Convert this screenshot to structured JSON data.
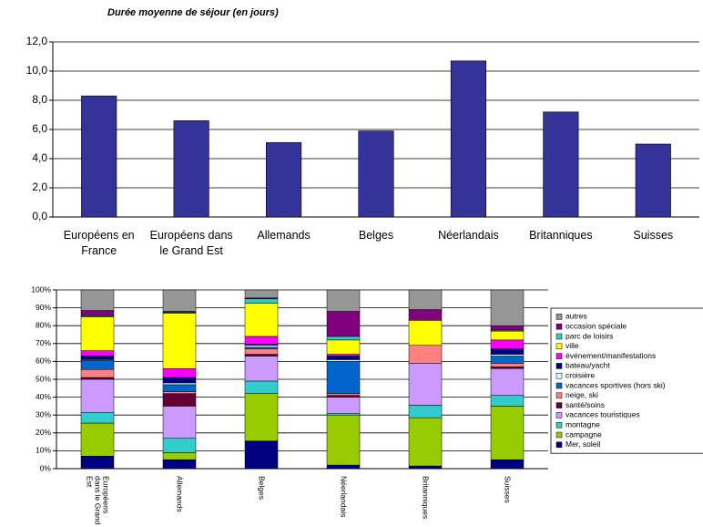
{
  "chart_data": [
    {
      "type": "bar",
      "title": "Durée moyenne de séjour (en jours)",
      "categories": [
        "Européens en France",
        "Européens dans le Grand Est",
        "Allemands",
        "Belges",
        "Néerlandais",
        "Britanniques",
        "Suisses"
      ],
      "values": [
        8.3,
        6.6,
        5.1,
        5.9,
        10.7,
        7.2,
        5.0
      ],
      "color": "#333399",
      "ylim": [
        0,
        12
      ],
      "yticks": [
        {
          "value": 0,
          "label": "0,0"
        },
        {
          "value": 2,
          "label": "2,0"
        },
        {
          "value": 4,
          "label": "4,0"
        },
        {
          "value": 6,
          "label": "6,0"
        },
        {
          "value": 8,
          "label": "8,0"
        },
        {
          "value": 10,
          "label": "10,0"
        },
        {
          "value": 12,
          "label": "12,0"
        }
      ],
      "grid": true
    },
    {
      "type": "stacked_bar",
      "categories": [
        "Européens dans le Grand Est",
        "Allemands",
        "Belges",
        "Néerlandais",
        "Britanniques",
        "Suisses"
      ],
      "series": [
        {
          "name": "Mer, soleil",
          "color": "#000080",
          "values": [
            7,
            5,
            15.5,
            2,
            1.5,
            5
          ]
        },
        {
          "name": "campagne",
          "color": "#99cc00",
          "values": [
            18.5,
            4,
            26.5,
            28,
            27,
            30
          ]
        },
        {
          "name": "montagne",
          "color": "#33cccc",
          "values": [
            6,
            8,
            7,
            1,
            7,
            6
          ]
        },
        {
          "name": "vacances touristiques",
          "color": "#cc99ff",
          "values": [
            18.5,
            18,
            14,
            9,
            23.5,
            15
          ]
        },
        {
          "name": "santé/soins",
          "color": "#660033",
          "values": [
            1,
            7,
            1,
            1,
            0,
            1
          ]
        },
        {
          "name": "neige, ski",
          "color": "#ff8080",
          "values": [
            4.5,
            1,
            3,
            1,
            10,
            2
          ]
        },
        {
          "name": "vacances sportives (hors ski)",
          "color": "#0066cc",
          "values": [
            5,
            4,
            1,
            18,
            0,
            4
          ]
        },
        {
          "name": "croisière",
          "color": "#ccffff",
          "values": [
            0.5,
            1,
            1,
            1,
            0,
            1
          ]
        },
        {
          "name": "bateau/yacht",
          "color": "#000080",
          "values": [
            2,
            3,
            0.5,
            2,
            0,
            3
          ]
        },
        {
          "name": "événement/manifestations",
          "color": "#ff00ff",
          "values": [
            3,
            5,
            4.5,
            1,
            0,
            5
          ]
        },
        {
          "name": "ville",
          "color": "#ffff00",
          "values": [
            19,
            31,
            18.5,
            8,
            14,
            5
          ]
        },
        {
          "name": "parc de loisirs",
          "color": "#33cccc",
          "values": [
            0.5,
            0.5,
            2.5,
            2,
            0,
            0.5
          ]
        },
        {
          "name": "occasion spéciale",
          "color": "#800080",
          "values": [
            3,
            0.5,
            0.5,
            14,
            6,
            2.5
          ]
        },
        {
          "name": "autres",
          "color": "#969696",
          "values": [
            11.5,
            12,
            4.5,
            12,
            11,
            20
          ]
        }
      ],
      "ylim": [
        0,
        100
      ],
      "yticks": [
        {
          "value": 0,
          "label": "0%"
        },
        {
          "value": 10,
          "label": "10%"
        },
        {
          "value": 20,
          "label": "20%"
        },
        {
          "value": 30,
          "label": "30%"
        },
        {
          "value": 40,
          "label": "40%"
        },
        {
          "value": 50,
          "label": "50%"
        },
        {
          "value": 60,
          "label": "60%"
        },
        {
          "value": 70,
          "label": "70%"
        },
        {
          "value": 80,
          "label": "80%"
        },
        {
          "value": 90,
          "label": "90%"
        },
        {
          "value": 100,
          "label": "100%"
        }
      ],
      "grid": true
    }
  ]
}
